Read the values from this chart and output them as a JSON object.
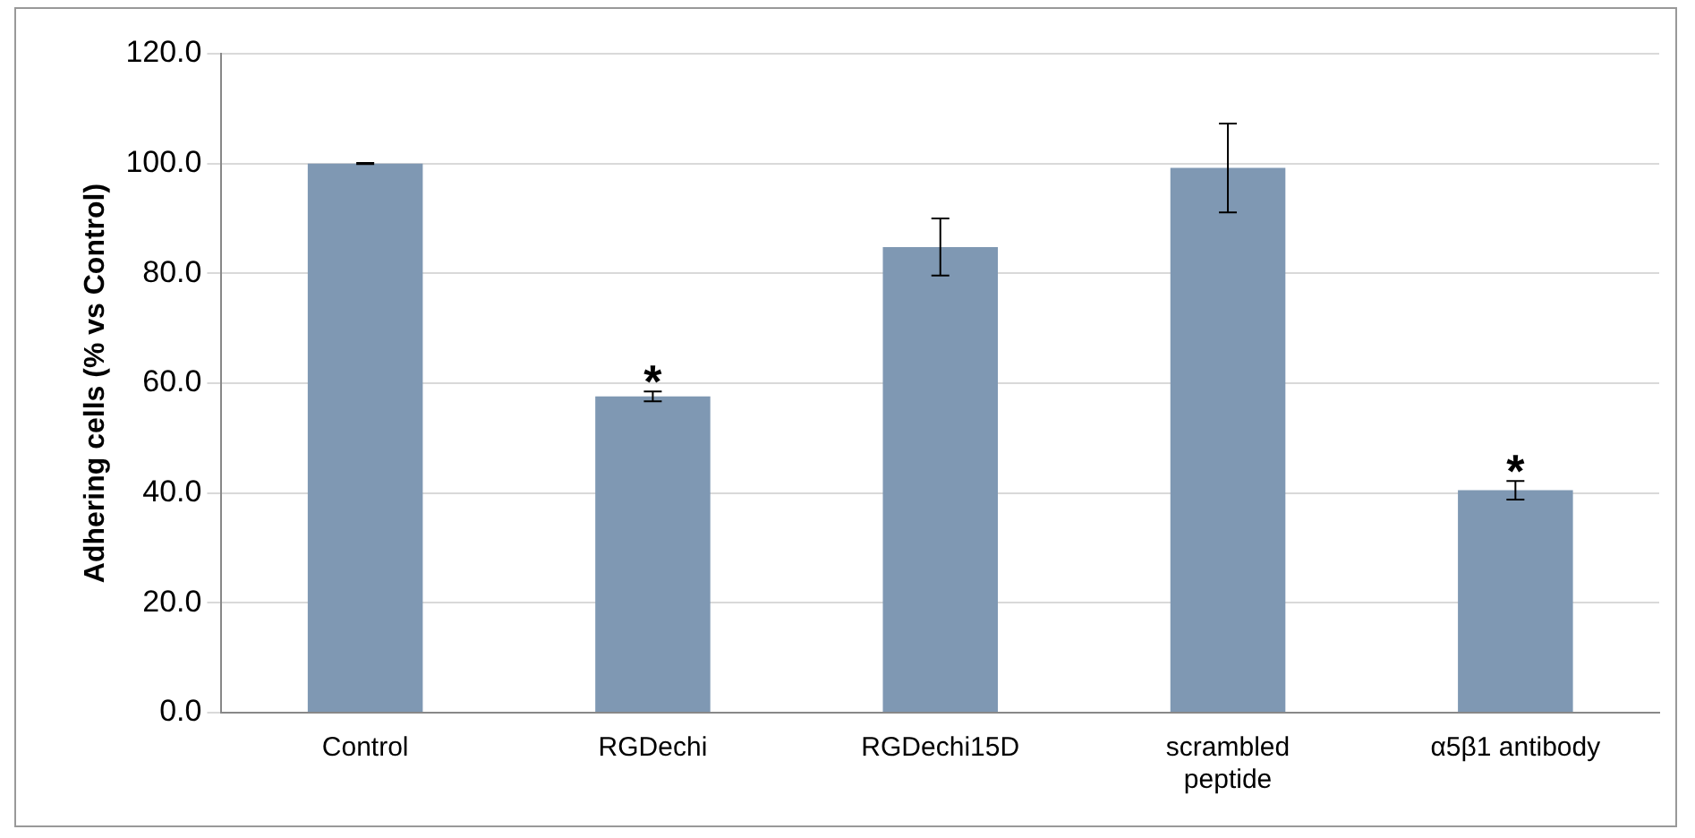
{
  "chart_data": {
    "type": "bar",
    "ylabel": "Adhering cells (% vs Control)",
    "categories": [
      "Control",
      "RGDechi",
      "RGDechi15D",
      "scrambled\npeptide",
      "α5β1 antibody"
    ],
    "values": [
      100.0,
      57.6,
      84.8,
      99.2,
      40.5
    ],
    "errors": [
      0.1,
      0.9,
      5.2,
      8.1,
      1.7
    ],
    "color": "#7f98b3",
    "ylim": [
      0,
      120
    ],
    "yticks": [
      {
        "value": 0,
        "label": "0.0"
      },
      {
        "value": 20,
        "label": "20.0"
      },
      {
        "value": 40,
        "label": "40.0"
      },
      {
        "value": 60,
        "label": "60.0"
      },
      {
        "value": 80,
        "label": "80.0"
      },
      {
        "value": 100,
        "label": "100.0"
      },
      {
        "value": 120,
        "label": "120.0"
      }
    ],
    "grid": "y",
    "annotations": [
      {
        "text": "*",
        "x": "RGDechi",
        "y": 57.6
      },
      {
        "text": "*",
        "x": "α5β1 antibody",
        "y": 40.5
      }
    ]
  }
}
